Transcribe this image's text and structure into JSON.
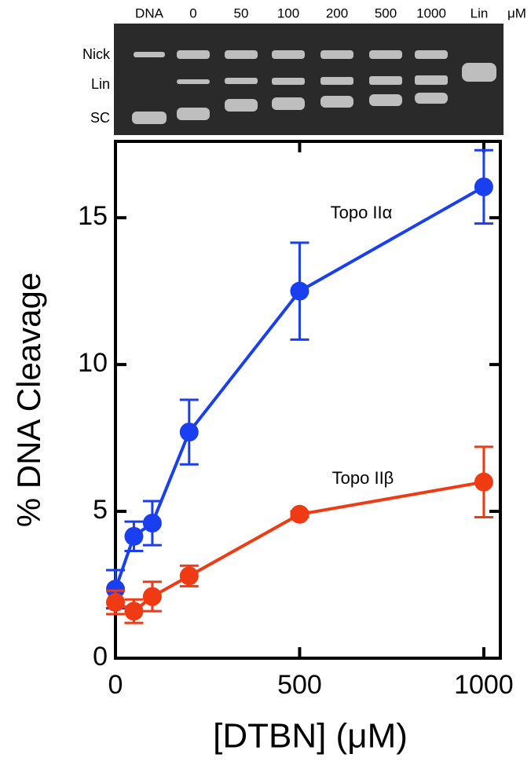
{
  "gel": {
    "lane_labels": [
      "DNA",
      "0",
      "50",
      "100",
      "200",
      "500",
      "1000",
      "Lin",
      "μM"
    ],
    "band_labels": [
      "Nick",
      "Lin",
      "SC"
    ]
  },
  "chart_data": {
    "type": "line",
    "x_label": "[DTBN] (μM)",
    "y_label": "% DNA Cleavage",
    "xlim": [
      0,
      1045
    ],
    "ylim": [
      0,
      17.6
    ],
    "xticks": [
      0,
      500,
      1000
    ],
    "yticks": [
      0,
      5,
      10,
      15
    ],
    "x": [
      0,
      50,
      100,
      200,
      500,
      1000
    ],
    "series": [
      {
        "name": "Topo IIα",
        "color": "#1a3ff0",
        "values": [
          2.35,
          4.15,
          4.6,
          7.7,
          12.5,
          16.05
        ],
        "errors": [
          0.65,
          0.5,
          0.75,
          1.1,
          1.65,
          1.25
        ]
      },
      {
        "name": "Topo IIβ",
        "color": "#f03a14",
        "values": [
          1.9,
          1.6,
          2.1,
          2.8,
          4.9,
          6.0
        ],
        "errors": [
          0.4,
          0.4,
          0.5,
          0.35,
          0.1,
          1.2
        ]
      }
    ]
  }
}
